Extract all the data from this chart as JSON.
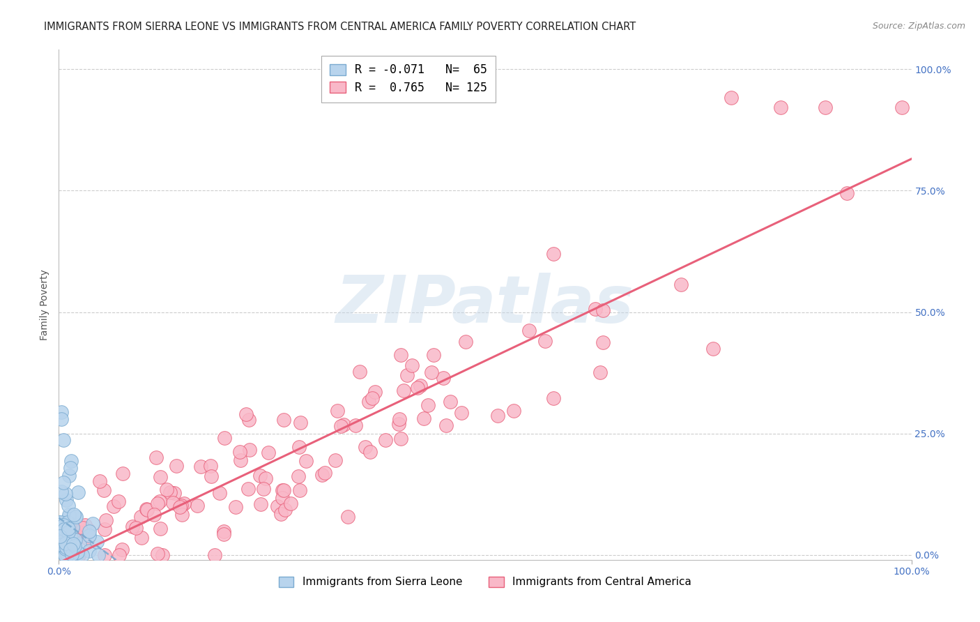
{
  "title": "IMMIGRANTS FROM SIERRA LEONE VS IMMIGRANTS FROM CENTRAL AMERICA FAMILY POVERTY CORRELATION CHART",
  "source": "Source: ZipAtlas.com",
  "ylabel": "Family Poverty",
  "sierra_leone_R": -0.071,
  "sierra_leone_N": 65,
  "central_america_R": 0.765,
  "central_america_N": 125,
  "sierra_leone_color": "#b8d4ed",
  "central_america_color": "#f9b8c8",
  "sierra_leone_edge_color": "#7aaad0",
  "central_america_edge_color": "#e8607a",
  "sierra_leone_line_color": "#7aaad0",
  "central_america_line_color": "#e8607a",
  "legend_sierra_leone": "Immigrants from Sierra Leone",
  "legend_central_america": "Immigrants from Central America",
  "title_color": "#222222",
  "axis_label_color": "#4472c4",
  "background_color": "#ffffff",
  "grid_color": "#cccccc",
  "title_fontsize": 10.5,
  "ylabel_fontsize": 10,
  "tick_fontsize": 10,
  "legend_fontsize": 11,
  "source_fontsize": 9,
  "watermark_text": "ZIPatlas",
  "watermark_color": "#c5d8ea",
  "watermark_alpha": 0.45
}
